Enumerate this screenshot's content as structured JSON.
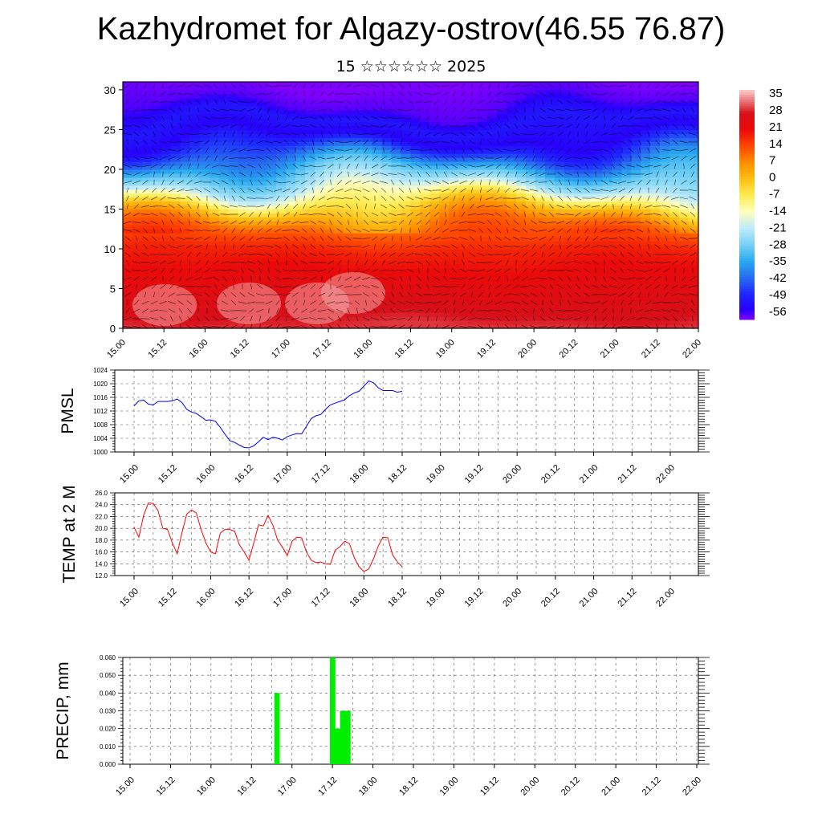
{
  "title": "Kazhydromet for Algazy-ostrov(46.55 76.87)",
  "subtitle": "15 ☆☆☆☆☆☆ 2025",
  "colors": {
    "pmsl_line": "#0000ff",
    "temp_line": "#ff0000",
    "precip_bar": "#00ee00"
  },
  "chart_data": [
    {
      "type": "heatmap",
      "xlabel": "",
      "ylabel": "",
      "x_tick_labels": [
        "15.00",
        "15.12",
        "16.00",
        "16.12",
        "17.00",
        "17.12",
        "18.00",
        "18.12",
        "19.00",
        "19.12",
        "20.00",
        "20.12",
        "21.00",
        "21.12",
        "22.00"
      ],
      "y_tick_labels": [
        "0",
        "5",
        "10",
        "15",
        "20",
        "25",
        "30"
      ],
      "ylim": [
        0,
        31
      ],
      "colorbar_labels": [
        "35",
        "28",
        "21",
        "14",
        "7",
        "0",
        "-7",
        "-14",
        "-21",
        "-28",
        "-35",
        "-42",
        "-49",
        "-56"
      ],
      "colorbar_range": [
        -60,
        38
      ],
      "overlay": "wind vectors",
      "temperature_profile": [
        {
          "level": 0,
          "value": 30
        },
        {
          "level": 5,
          "value": 24
        },
        {
          "level": 10,
          "value": 18
        },
        {
          "level": 13,
          "value": 10
        },
        {
          "level": 15,
          "value": 0
        },
        {
          "level": 16.5,
          "value": -10
        },
        {
          "level": 18,
          "value": -22
        },
        {
          "level": 20,
          "value": -32
        },
        {
          "level": 22,
          "value": -45
        },
        {
          "level": 24,
          "value": -56
        },
        {
          "level": 26,
          "value": -52
        },
        {
          "level": 28,
          "value": -58
        },
        {
          "level": 31,
          "value": -60
        }
      ]
    },
    {
      "type": "line",
      "ylabel": "PMSL",
      "ylim": [
        1000,
        1024
      ],
      "y_tick_labels": [
        "1000",
        "1004",
        "1008",
        "1012",
        "1016",
        "1020",
        "1024"
      ],
      "x_tick_labels": [
        "15.00",
        "15.12",
        "16.00",
        "16.12",
        "17.00",
        "17.12",
        "18.00",
        "18.12",
        "19.00",
        "19.12",
        "20.00",
        "20.12",
        "21.00",
        "21.12",
        "22.00"
      ],
      "step_hours": 3,
      "series": [
        {
          "values": [
            1013.5,
            1015,
            1015.2,
            1014,
            1013.8,
            1014.8,
            1014.8,
            1014.8,
            1015,
            1015.5,
            1014.5,
            1012.5,
            1011.7,
            1011.3,
            1010.3,
            1009.3,
            1009.4,
            1009,
            1007.2,
            1005.2,
            1003.3,
            1002.8,
            1002,
            1001.3,
            1001.2,
            1001.8,
            1003,
            1004.3,
            1003.6,
            1004.3,
            1004,
            1003.5,
            1004.5,
            1005,
            1005.4,
            1005.3,
            1007.5,
            1009.8,
            1010.6,
            1011,
            1012.5,
            1013.8,
            1014.3,
            1014.8,
            1015.3,
            1016.5,
            1017.3,
            1017.8,
            1019.3,
            1020.8,
            1020.3,
            1018.8,
            1018,
            1018,
            1018,
            1017.5,
            1017.8
          ]
        }
      ]
    },
    {
      "type": "line",
      "ylabel": "TEMP at 2 M",
      "ylim": [
        12,
        26
      ],
      "y_tick_labels": [
        "12.0",
        "14.0",
        "16.0",
        "18.0",
        "20.0",
        "22.0",
        "24.0",
        "26.0"
      ],
      "x_tick_labels": [
        "15.00",
        "15.12",
        "16.00",
        "16.12",
        "17.00",
        "17.12",
        "18.00",
        "18.12",
        "19.00",
        "19.12",
        "20.00",
        "20.12",
        "21.00",
        "21.12",
        "22.00"
      ],
      "step_hours": 3,
      "series": [
        {
          "values": [
            20.2,
            18.5,
            22.2,
            24.3,
            24.2,
            23,
            20,
            19.8,
            17.5,
            15.7,
            19.2,
            22.4,
            23.1,
            22.6,
            19.8,
            17.5,
            16,
            15.7,
            19.2,
            19.8,
            19.8,
            19.5,
            17.2,
            16,
            14.6,
            17.5,
            20.6,
            20.4,
            22.2,
            20.5,
            18,
            16.8,
            15.4,
            17.8,
            18.5,
            18.4,
            16,
            14.6,
            14.2,
            14.3,
            14,
            13.9,
            16.3,
            16.9,
            17.8,
            17.4,
            15,
            13.5,
            12.7,
            13.1,
            14.8,
            17,
            18.5,
            18.4,
            15.5,
            14.3,
            13.5
          ]
        }
      ]
    },
    {
      "type": "bar",
      "ylabel": "PRECIP, mm",
      "ylim": [
        0,
        0.06
      ],
      "y_tick_labels": [
        "0.000",
        "0.010",
        "0.020",
        "0.030",
        "0.040",
        "0.050",
        "0.060"
      ],
      "x_tick_labels": [
        "15.00",
        "15.12",
        "16.00",
        "16.12",
        "17.00",
        "17.12",
        "18.00",
        "18.12",
        "19.00",
        "19.12",
        "20.00",
        "20.12",
        "21.00",
        "21.12",
        "22.00"
      ],
      "step_hours": 3,
      "values": [
        0,
        0,
        0,
        0,
        0,
        0,
        0,
        0,
        0,
        0,
        0,
        0,
        0,
        0,
        0,
        0,
        0,
        0,
        0,
        0,
        0,
        0,
        0,
        0,
        0,
        0,
        0,
        0,
        0,
        0.04,
        0,
        0,
        0,
        0,
        0,
        0,
        0,
        0,
        0,
        0,
        0.06,
        0.02,
        0.03,
        0.03,
        0,
        0,
        0,
        0,
        0,
        0,
        0,
        0,
        0,
        0,
        0,
        0,
        0
      ]
    }
  ]
}
